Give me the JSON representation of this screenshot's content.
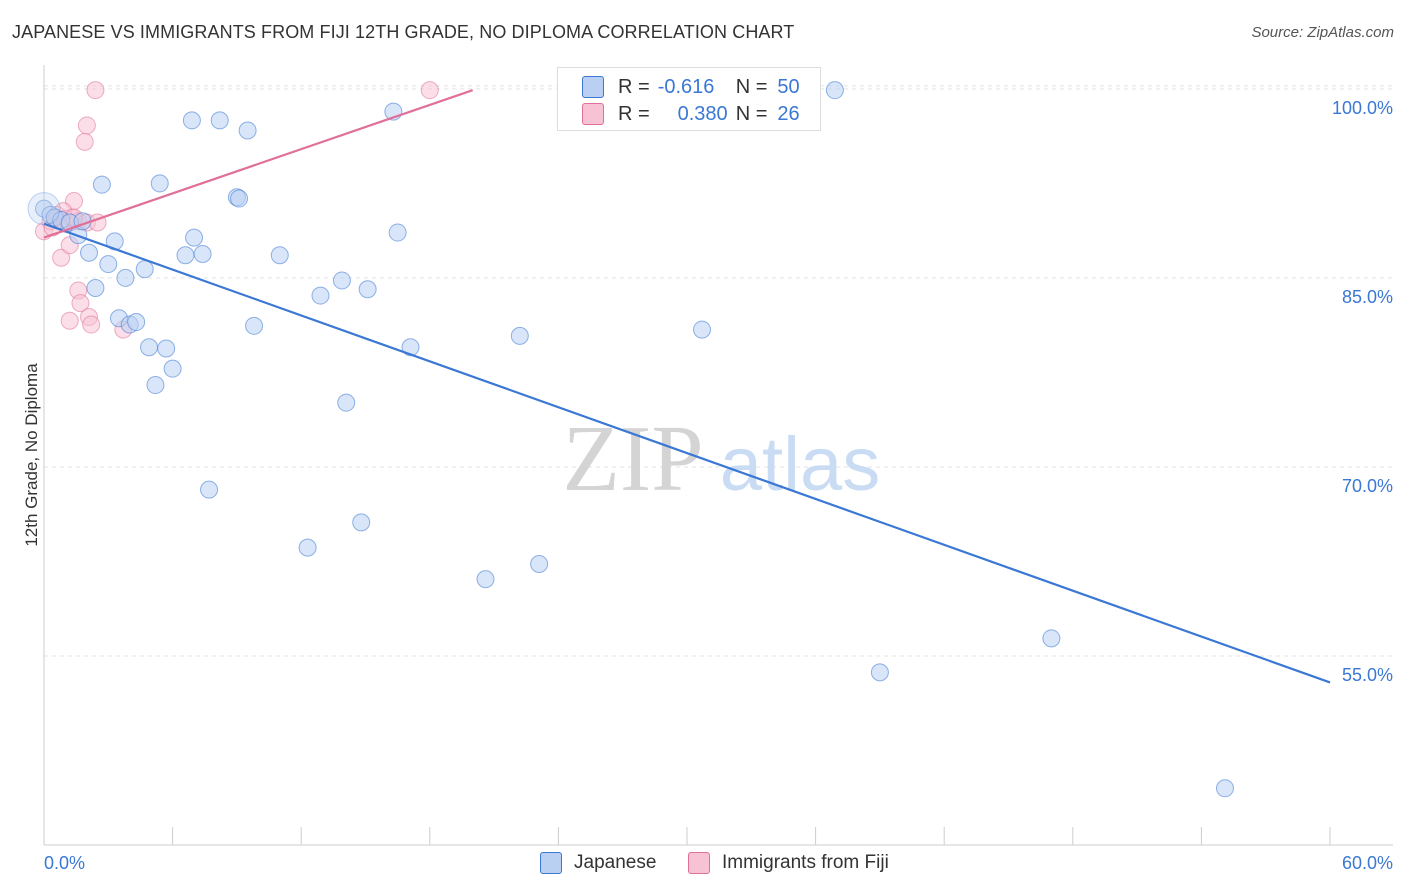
{
  "title": "JAPANESE VS IMMIGRANTS FROM FIJI 12TH GRADE, NO DIPLOMA CORRELATION CHART",
  "source": "Source: ZipAtlas.com",
  "watermark": {
    "zip": "ZIP",
    "atlas": "atlas"
  },
  "legend": {
    "rows": [
      {
        "r_label": "R =",
        "r_value": "-0.616",
        "n_label": "N =",
        "n_value": "50"
      },
      {
        "r_label": "R =",
        "r_value": "0.380",
        "n_label": "N =",
        "n_value": "26"
      }
    ]
  },
  "colors": {
    "japanese": "#3a78d4",
    "japanese_fill": "#b9d0f2",
    "fiji": "#e07099",
    "fiji_fill": "#f7c2d4",
    "grid": "#e3e3e3",
    "axis_text": "#3a78d4"
  },
  "chart_data": {
    "type": "scatter",
    "title": "JAPANESE VS IMMIGRANTS FROM FIJI 12TH GRADE, NO DIPLOMA CORRELATION CHART",
    "xlabel": "",
    "ylabel": "12th Grade, No Diploma",
    "xlim": [
      0,
      60
    ],
    "ylim": [
      40,
      101.5
    ],
    "x_tick_labels": [
      "0.0%",
      "60.0%"
    ],
    "y_ticks": [
      100,
      85,
      70,
      55
    ],
    "y_tick_labels": [
      "100.0%",
      "85.0%",
      "70.0%",
      "55.0%"
    ],
    "series": [
      {
        "name": "Japanese",
        "points": [
          [
            0.0,
            90.5
          ],
          [
            0.3,
            90.0
          ],
          [
            0.5,
            89.8
          ],
          [
            0.8,
            89.6
          ],
          [
            1.2,
            89.4
          ],
          [
            1.6,
            88.4
          ],
          [
            1.8,
            89.5
          ],
          [
            2.1,
            87.0
          ],
          [
            2.4,
            84.2
          ],
          [
            2.7,
            92.4
          ],
          [
            3.0,
            86.1
          ],
          [
            3.3,
            87.9
          ],
          [
            3.5,
            81.8
          ],
          [
            3.8,
            85.0
          ],
          [
            4.0,
            81.3
          ],
          [
            4.3,
            81.5
          ],
          [
            4.7,
            85.7
          ],
          [
            4.9,
            79.5
          ],
          [
            5.2,
            76.5
          ],
          [
            5.4,
            92.5
          ],
          [
            5.7,
            79.4
          ],
          [
            6.0,
            77.8
          ],
          [
            6.6,
            86.8
          ],
          [
            6.9,
            97.5
          ],
          [
            7.0,
            88.2
          ],
          [
            7.4,
            86.9
          ],
          [
            7.7,
            68.2
          ],
          [
            8.2,
            97.5
          ],
          [
            9.0,
            91.4
          ],
          [
            9.1,
            91.3
          ],
          [
            9.5,
            96.7
          ],
          [
            9.8,
            81.2
          ],
          [
            11.0,
            86.8
          ],
          [
            12.3,
            63.6
          ],
          [
            12.9,
            83.6
          ],
          [
            13.9,
            84.8
          ],
          [
            14.1,
            75.1
          ],
          [
            14.8,
            65.6
          ],
          [
            15.1,
            84.1
          ],
          [
            16.3,
            98.2
          ],
          [
            16.5,
            88.6
          ],
          [
            17.1,
            79.5
          ],
          [
            20.6,
            61.1
          ],
          [
            22.2,
            80.4
          ],
          [
            23.1,
            62.3
          ],
          [
            30.7,
            80.9
          ],
          [
            36.9,
            99.9
          ],
          [
            39.0,
            53.7
          ],
          [
            47.0,
            56.4
          ],
          [
            55.1,
            44.5
          ]
        ],
        "trend": {
          "x": [
            0,
            60
          ],
          "y": [
            89.3,
            52.9
          ]
        }
      },
      {
        "name": "Immigrants from Fiji",
        "points": [
          [
            0.0,
            88.7
          ],
          [
            0.3,
            89.5
          ],
          [
            0.5,
            89.8
          ],
          [
            0.6,
            90.0
          ],
          [
            0.8,
            86.6
          ],
          [
            1.0,
            89.3
          ],
          [
            1.0,
            89.7
          ],
          [
            1.2,
            87.6
          ],
          [
            1.3,
            89.8
          ],
          [
            1.4,
            91.1
          ],
          [
            1.6,
            89.5
          ],
          [
            1.6,
            84.0
          ],
          [
            1.7,
            83.0
          ],
          [
            1.9,
            95.8
          ],
          [
            2.0,
            97.1
          ],
          [
            2.0,
            89.4
          ],
          [
            2.1,
            81.9
          ],
          [
            2.2,
            81.3
          ],
          [
            2.4,
            99.9
          ],
          [
            2.5,
            89.4
          ],
          [
            0.9,
            90.3
          ],
          [
            3.7,
            80.9
          ],
          [
            0.4,
            89.0
          ],
          [
            1.2,
            81.6
          ],
          [
            1.4,
            89.8
          ],
          [
            18.0,
            99.9
          ]
        ],
        "trend": {
          "x": [
            0,
            20
          ],
          "y": [
            88.2,
            99.9
          ]
        }
      }
    ]
  },
  "bottom_legend": {
    "japanese": "Japanese",
    "fiji": "Immigrants from Fiji"
  }
}
